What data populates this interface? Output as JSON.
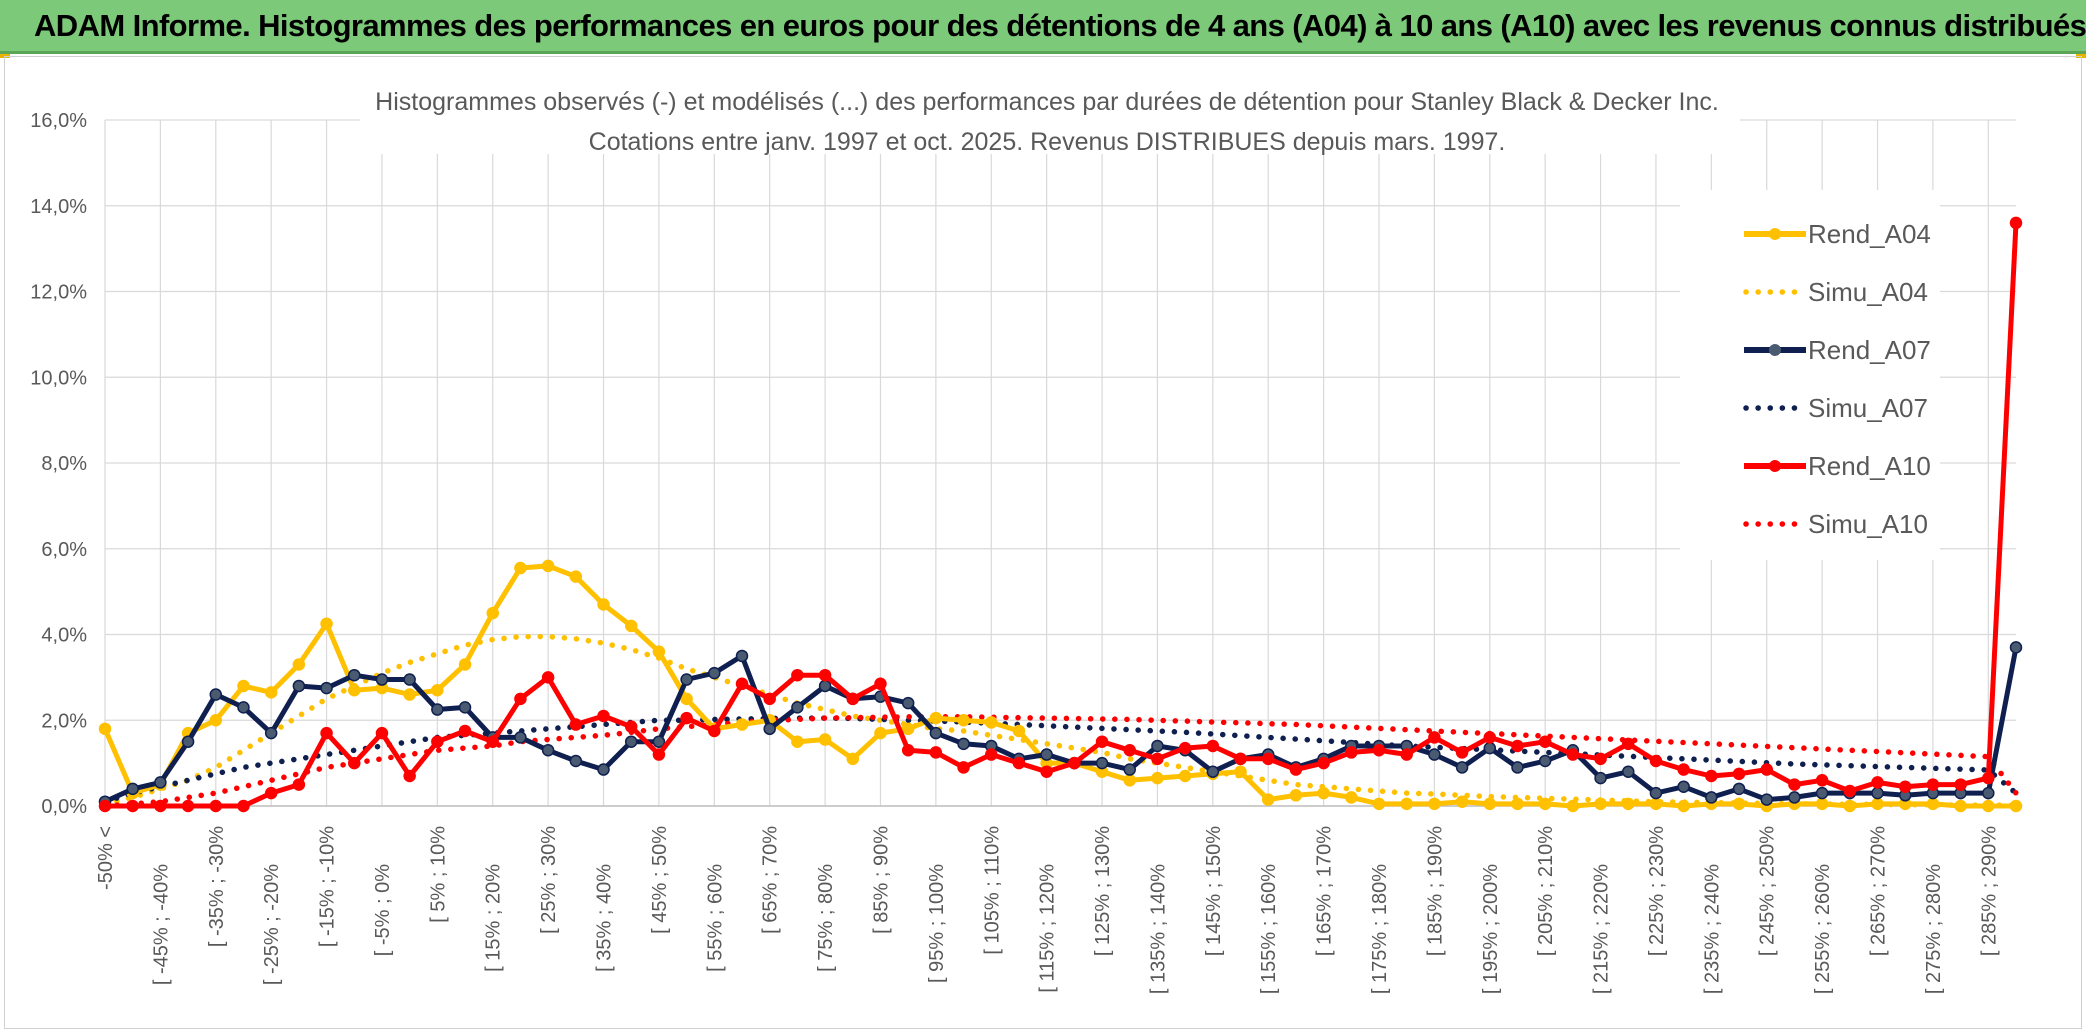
{
  "header": {
    "title": "ADAM Informe. Histogrammes des performances en euros pour des détentions de 4 ans (A04) à 10 ans (A10) avec les revenus connus distribués",
    "bg_color": "#7dc97a"
  },
  "chart_data": {
    "type": "line",
    "title": "Histogrammes observés (-) et modélisés (...) des performances par durées de détention pour Stanley Black & Decker Inc.",
    "subtitle": "Cotations entre janv. 1997 et oct. 2025. Revenus DISTRIBUES depuis mars. 1997.",
    "xlabel": "",
    "ylabel": "",
    "ylim": [
      0,
      16
    ],
    "y_ticks": [
      "0,0%",
      "2,0%",
      "4,0%",
      "6,0%",
      "8,0%",
      "10,0%",
      "12,0%",
      "14,0%",
      "16,0%"
    ],
    "grid": true,
    "legend_position": "right",
    "n_points": 70,
    "x_tick_labels": [
      "-50% <",
      "[ -45% ; -40%",
      "[ -35% ; -30%",
      "[ -25% ; -20%",
      "[ -15% ; -10%",
      "[ -5% ; 0%",
      "[ 5% ; 10%",
      "[ 15% ; 20%",
      "[ 25% ; 30%",
      "[ 35% ; 40%",
      "[ 45% ; 50%",
      "[ 55% ; 60%",
      "[ 65% ; 70%",
      "[ 75% ; 80%",
      "[ 85% ; 90%",
      "[ 95% ; 100%",
      "[ 105% ; 110%",
      "[ 115% ; 120%",
      "[ 125% ; 130%",
      "[ 135% ; 140%",
      "[ 145% ; 150%",
      "[ 155% ; 160%",
      "[ 165% ; 170%",
      "[ 175% ; 180%",
      "[ 185% ; 190%",
      "[ 195% ; 200%",
      "[ 205% ; 210%",
      "[ 215% ; 220%",
      "[ 225% ; 230%",
      "[ 235% ; 240%",
      "[ 245% ; 250%",
      "[ 255% ; 260%",
      "[ 265% ; 270%",
      "[ 275% ; 280%",
      "[ 285% ; 290%"
    ],
    "x_tick_indices": [
      0,
      2,
      4,
      6,
      8,
      10,
      12,
      14,
      16,
      18,
      20,
      22,
      24,
      26,
      28,
      30,
      32,
      34,
      36,
      38,
      40,
      42,
      44,
      46,
      48,
      50,
      52,
      54,
      56,
      58,
      60,
      62,
      64,
      66,
      68
    ],
    "series": [
      {
        "name": "Rend_A04",
        "color": "#ffc000",
        "style": "solid",
        "markers": true,
        "values": [
          1.8,
          0.3,
          0.5,
          1.7,
          2.0,
          2.8,
          2.65,
          3.3,
          4.25,
          2.7,
          2.75,
          2.6,
          2.7,
          3.3,
          4.5,
          5.55,
          5.6,
          5.35,
          4.7,
          4.2,
          3.6,
          2.5,
          1.8,
          1.9,
          2.0,
          1.5,
          1.55,
          1.1,
          1.7,
          1.8,
          2.05,
          2.0,
          1.95,
          1.75,
          1.0,
          1.0,
          0.8,
          0.6,
          0.65,
          0.7,
          0.75,
          0.8,
          0.15,
          0.25,
          0.3,
          0.2,
          0.05,
          0.05,
          0.05,
          0.1,
          0.05,
          0.05,
          0.05,
          0.0,
          0.05,
          0.05,
          0.05,
          0.0,
          0.05,
          0.05,
          0.0,
          0.05,
          0.05,
          0.0,
          0.05,
          0.05,
          0.05,
          0.0,
          0.0,
          0.0
        ]
      },
      {
        "name": "Simu_A04",
        "color": "#ffc000",
        "style": "dotted",
        "markers": false,
        "values": [
          0.05,
          0.2,
          0.4,
          0.6,
          0.9,
          1.3,
          1.7,
          2.1,
          2.5,
          2.8,
          3.1,
          3.35,
          3.55,
          3.75,
          3.88,
          3.95,
          3.95,
          3.9,
          3.8,
          3.65,
          3.45,
          3.2,
          3.0,
          2.8,
          2.6,
          2.4,
          2.25,
          2.1,
          2.0,
          1.9,
          1.8,
          1.75,
          1.65,
          1.55,
          1.45,
          1.35,
          1.25,
          1.1,
          1.0,
          0.9,
          0.8,
          0.7,
          0.6,
          0.5,
          0.45,
          0.4,
          0.35,
          0.3,
          0.28,
          0.25,
          0.22,
          0.2,
          0.18,
          0.16,
          0.14,
          0.12,
          0.1,
          0.09,
          0.08,
          0.07,
          0.06,
          0.05,
          0.05,
          0.04,
          0.04,
          0.03,
          0.03,
          0.02,
          0.02,
          0.02
        ]
      },
      {
        "name": "Rend_A07",
        "color": "#0f2050",
        "style": "solid",
        "markers": true,
        "values": [
          0.1,
          0.4,
          0.55,
          1.5,
          2.6,
          2.3,
          1.7,
          2.8,
          2.75,
          3.05,
          2.95,
          2.95,
          2.25,
          2.3,
          1.6,
          1.6,
          1.3,
          1.05,
          0.85,
          1.5,
          1.5,
          2.95,
          3.1,
          3.5,
          1.8,
          2.3,
          2.8,
          2.5,
          2.55,
          2.4,
          1.7,
          1.45,
          1.4,
          1.1,
          1.2,
          1.0,
          1.0,
          0.85,
          1.4,
          1.3,
          0.8,
          1.1,
          1.2,
          0.9,
          1.1,
          1.4,
          1.4,
          1.4,
          1.2,
          0.9,
          1.35,
          0.9,
          1.05,
          1.3,
          0.65,
          0.8,
          0.3,
          0.45,
          0.2,
          0.4,
          0.15,
          0.2,
          0.3,
          0.3,
          0.3,
          0.25,
          0.3,
          0.3,
          0.3,
          3.7
        ]
      },
      {
        "name": "Simu_A07",
        "color": "#0f2050",
        "style": "dotted",
        "markers": false,
        "values": [
          0.1,
          0.3,
          0.45,
          0.6,
          0.75,
          0.9,
          1.0,
          1.1,
          1.2,
          1.3,
          1.4,
          1.5,
          1.6,
          1.65,
          1.7,
          1.75,
          1.8,
          1.85,
          1.9,
          1.95,
          2.0,
          2.0,
          2.02,
          2.03,
          2.04,
          2.05,
          2.05,
          2.04,
          2.02,
          2.0,
          1.98,
          1.96,
          1.93,
          1.9,
          1.87,
          1.84,
          1.81,
          1.78,
          1.75,
          1.72,
          1.68,
          1.64,
          1.6,
          1.56,
          1.52,
          1.48,
          1.44,
          1.4,
          1.37,
          1.34,
          1.31,
          1.28,
          1.25,
          1.22,
          1.19,
          1.16,
          1.13,
          1.1,
          1.07,
          1.04,
          1.01,
          0.98,
          0.96,
          0.94,
          0.92,
          0.9,
          0.88,
          0.86,
          0.84,
          0.3
        ]
      },
      {
        "name": "Rend_A10",
        "color": "#ff0000",
        "style": "solid",
        "markers": true,
        "values": [
          0.0,
          0.0,
          0.0,
          0.0,
          0.0,
          0.0,
          0.3,
          0.5,
          1.7,
          1.0,
          1.7,
          0.7,
          1.5,
          1.75,
          1.5,
          2.5,
          3.0,
          1.9,
          2.1,
          1.85,
          1.2,
          2.05,
          1.75,
          2.85,
          2.5,
          3.05,
          3.05,
          2.5,
          2.85,
          1.3,
          1.25,
          0.9,
          1.2,
          1.0,
          0.8,
          1.0,
          1.5,
          1.3,
          1.1,
          1.35,
          1.4,
          1.1,
          1.1,
          0.85,
          1.0,
          1.25,
          1.3,
          1.2,
          1.6,
          1.25,
          1.6,
          1.4,
          1.5,
          1.2,
          1.1,
          1.45,
          1.05,
          0.85,
          0.7,
          0.75,
          0.85,
          0.5,
          0.6,
          0.35,
          0.55,
          0.45,
          0.5,
          0.5,
          0.65,
          13.6
        ]
      },
      {
        "name": "Simu_A10",
        "color": "#ff0000",
        "style": "dotted",
        "markers": false,
        "values": [
          0.0,
          0.05,
          0.1,
          0.2,
          0.3,
          0.45,
          0.6,
          0.75,
          0.9,
          1.0,
          1.1,
          1.2,
          1.3,
          1.35,
          1.4,
          1.5,
          1.55,
          1.6,
          1.65,
          1.72,
          1.8,
          1.85,
          1.9,
          1.95,
          2.0,
          2.02,
          2.05,
          2.06,
          2.07,
          2.08,
          2.08,
          2.08,
          2.07,
          2.06,
          2.05,
          2.04,
          2.03,
          2.02,
          2.0,
          1.98,
          1.96,
          1.94,
          1.92,
          1.9,
          1.87,
          1.84,
          1.81,
          1.78,
          1.75,
          1.72,
          1.69,
          1.66,
          1.63,
          1.6,
          1.57,
          1.54,
          1.51,
          1.48,
          1.45,
          1.42,
          1.39,
          1.36,
          1.33,
          1.3,
          1.27,
          1.24,
          1.21,
          1.18,
          1.15,
          0.3
        ]
      }
    ]
  }
}
